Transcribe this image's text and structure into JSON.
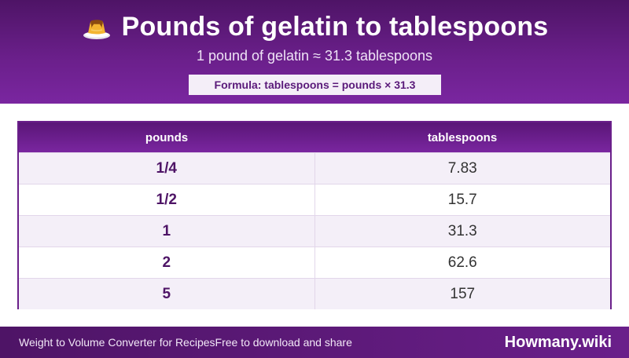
{
  "header": {
    "icon": "flan-pudding-icon",
    "title": "Pounds of gelatin to tablespoons",
    "subtitle": "1 pound of gelatin ≈ 31.3 tablespoons",
    "formula": "Formula: tablespoons = pounds × 31.3"
  },
  "table": {
    "columns": [
      "pounds",
      "tablespoons"
    ],
    "rows": [
      {
        "pounds": "1/4",
        "tablespoons": "7.83"
      },
      {
        "pounds": "1/2",
        "tablespoons": "15.7"
      },
      {
        "pounds": "1",
        "tablespoons": "31.3"
      },
      {
        "pounds": "2",
        "tablespoons": "62.6"
      },
      {
        "pounds": "5",
        "tablespoons": "157"
      }
    ]
  },
  "footer": {
    "left": "Weight to Volume Converter for Recipes",
    "middle": "Free to download and share",
    "brand": "Howmany.wiki"
  },
  "colors": {
    "primary_purple": "#6a1f8a",
    "dark_purple": "#4e1466",
    "row_alt": "#f4eff8"
  }
}
